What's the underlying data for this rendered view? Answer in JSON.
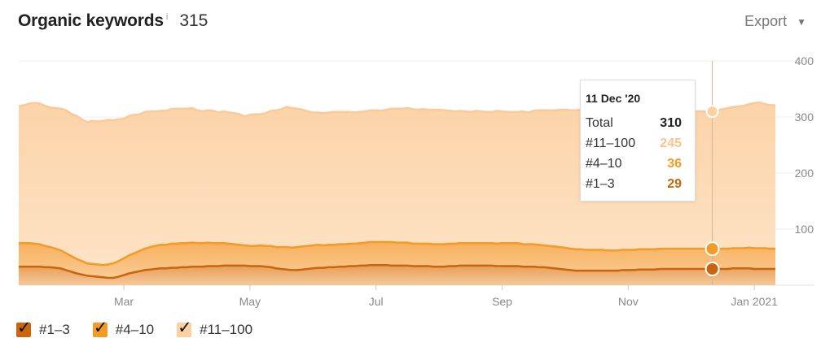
{
  "header": {
    "title": "Organic keywords",
    "info_mark": "i",
    "count": "315",
    "export_label": "Export"
  },
  "colors": {
    "top3": "#c8650e",
    "top10": "#f39a27",
    "top100": "#fcd09f",
    "total": "#fcc999"
  },
  "tooltip": {
    "date": "11 Dec '20",
    "rows": [
      {
        "label": "Total",
        "value": "310",
        "color": "#222222"
      },
      {
        "label": "#11–100",
        "value": "245",
        "color": "#fbc38c"
      },
      {
        "label": "#4–10",
        "value": "36",
        "color": "#f39a27"
      },
      {
        "label": "#1–3",
        "value": "29",
        "color": "#c8650e"
      }
    ]
  },
  "legend": [
    {
      "label": "#1–3",
      "color": "#c8650e"
    },
    {
      "label": "#4–10",
      "color": "#f39a27"
    },
    {
      "label": "#11–100",
      "color": "#fcd09f"
    }
  ],
  "chart_data": {
    "type": "area",
    "stacked": true,
    "ylim": [
      0,
      400
    ],
    "yticks": [
      100,
      200,
      300,
      400
    ],
    "x_tick_labels": [
      "Mar",
      "May",
      "Jul",
      "Sep",
      "Nov",
      "Jan 2021"
    ],
    "x_tick_index": [
      20,
      44,
      68,
      92,
      116,
      140
    ],
    "highlight_index": 132,
    "series": [
      {
        "name": "#1–3",
        "values": [
          33,
          33,
          33,
          33,
          33,
          32,
          32,
          31,
          30,
          27,
          24,
          21,
          19,
          17,
          16,
          15,
          14,
          13,
          13,
          15,
          18,
          21,
          23,
          25,
          27,
          28,
          29,
          30,
          30,
          31,
          31,
          32,
          32,
          33,
          33,
          33,
          34,
          34,
          34,
          35,
          35,
          35,
          35,
          35,
          34,
          34,
          34,
          33,
          32,
          30,
          29,
          28,
          27,
          27,
          28,
          29,
          30,
          31,
          31,
          32,
          32,
          33,
          33,
          34,
          34,
          35,
          35,
          36,
          36,
          36,
          36,
          35,
          35,
          35,
          35,
          34,
          34,
          34,
          34,
          33,
          33,
          33,
          34,
          34,
          35,
          35,
          35,
          35,
          35,
          35,
          35,
          34,
          34,
          34,
          34,
          34,
          33,
          33,
          33,
          32,
          32,
          31,
          30,
          29,
          28,
          27,
          26,
          26,
          26,
          26,
          26,
          26,
          26,
          26,
          26,
          27,
          27,
          27,
          28,
          28,
          28,
          28,
          29,
          29,
          29,
          29,
          29,
          29,
          29,
          29,
          29,
          29,
          29,
          29,
          29,
          29,
          30,
          30,
          30,
          30,
          29,
          29,
          29,
          29,
          29
        ]
      },
      {
        "name": "#4–10",
        "values": [
          42,
          42,
          42,
          41,
          40,
          38,
          36,
          34,
          32,
          30,
          28,
          26,
          24,
          22,
          22,
          22,
          22,
          24,
          26,
          28,
          30,
          32,
          34,
          36,
          38,
          40,
          41,
          42,
          42,
          43,
          43,
          43,
          43,
          43,
          42,
          42,
          42,
          41,
          41,
          40,
          39,
          38,
          37,
          36,
          36,
          36,
          37,
          37,
          38,
          38,
          39,
          40,
          40,
          41,
          41,
          41,
          41,
          41,
          40,
          40,
          40,
          40,
          40,
          40,
          40,
          40,
          41,
          41,
          41,
          41,
          41,
          42,
          41,
          41,
          41,
          40,
          40,
          40,
          40,
          40,
          40,
          40,
          40,
          40,
          40,
          40,
          40,
          40,
          40,
          40,
          40,
          40,
          41,
          41,
          41,
          41,
          40,
          40,
          40,
          40,
          39,
          39,
          39,
          39,
          39,
          38,
          38,
          38,
          37,
          37,
          37,
          37,
          36,
          36,
          36,
          36,
          36,
          36,
          36,
          36,
          36,
          36,
          36,
          36,
          36,
          36,
          36,
          36,
          36,
          36,
          36,
          36,
          36,
          36,
          36,
          36,
          36,
          36,
          36,
          37,
          37,
          37,
          37,
          36,
          36
        ]
      },
      {
        "name": "#11–100",
        "values": [
          244,
          246,
          249,
          251,
          251,
          250,
          249,
          251,
          253,
          255,
          254,
          255,
          253,
          252,
          255,
          255,
          257,
          258,
          255,
          253,
          249,
          249,
          247,
          244,
          244,
          242,
          240,
          239,
          239,
          240,
          241,
          240,
          240,
          240,
          237,
          235,
          236,
          236,
          233,
          235,
          234,
          234,
          233,
          230,
          234,
          235,
          234,
          237,
          241,
          244,
          246,
          250,
          249,
          247,
          244,
          240,
          237,
          236,
          236,
          236,
          237,
          236,
          236,
          235,
          234,
          234,
          234,
          235,
          235,
          234,
          236,
          238,
          239,
          239,
          240,
          240,
          239,
          240,
          239,
          240,
          240,
          239,
          237,
          236,
          236,
          235,
          234,
          236,
          235,
          234,
          234,
          237,
          235,
          234,
          234,
          234,
          237,
          235,
          238,
          240,
          241,
          242,
          243,
          245,
          246,
          247,
          248,
          249,
          250,
          249,
          248,
          248,
          248,
          248,
          247,
          247,
          246,
          248,
          248,
          247,
          246,
          246,
          246,
          245,
          245,
          245,
          245,
          245,
          245,
          245,
          245,
          245,
          245,
          247,
          249,
          251,
          252,
          253,
          254,
          256,
          259,
          260,
          257,
          256,
          256
        ]
      }
    ]
  }
}
